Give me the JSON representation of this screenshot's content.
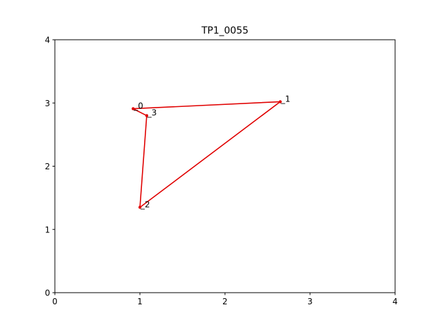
{
  "chart_data": {
    "type": "line",
    "title": "TP1_0055",
    "xlabel": "",
    "ylabel": "",
    "xlim": [
      0,
      4
    ],
    "ylim": [
      0,
      4
    ],
    "xticks": [
      0,
      1,
      2,
      3,
      4
    ],
    "yticks": [
      0,
      1,
      2,
      3,
      4
    ],
    "grid": false,
    "series": [
      {
        "color": "#e00000",
        "closed": true,
        "points": [
          {
            "label": "0",
            "x": 0.92,
            "y": 2.91
          },
          {
            "label": "1",
            "x": 2.65,
            "y": 3.02
          },
          {
            "label": "2",
            "x": 1.0,
            "y": 1.35
          },
          {
            "label": "3",
            "x": 1.08,
            "y": 2.8
          }
        ]
      }
    ]
  }
}
